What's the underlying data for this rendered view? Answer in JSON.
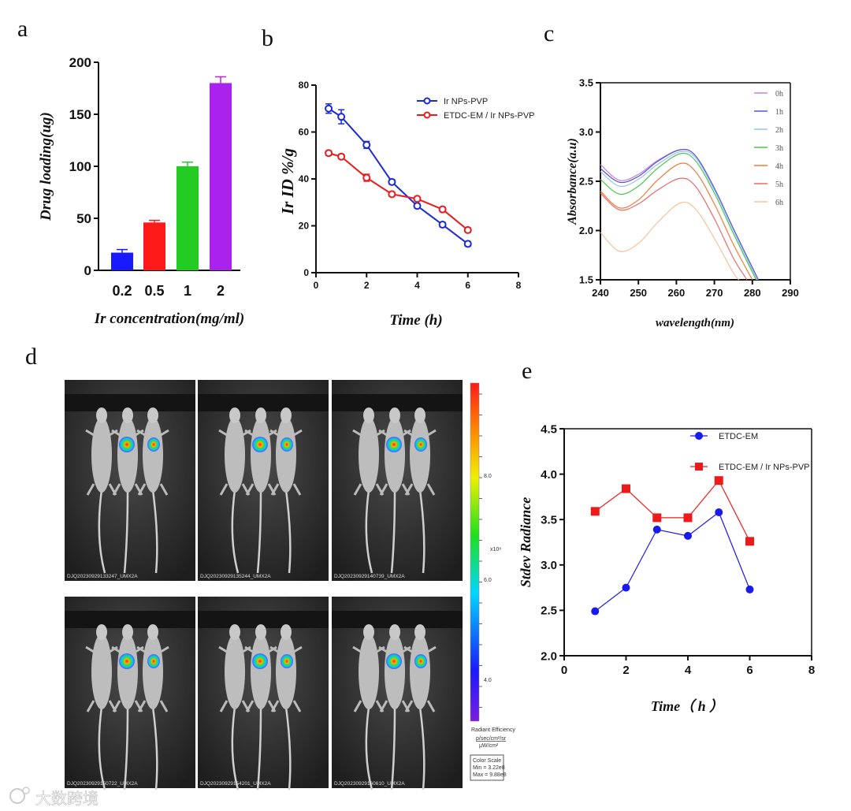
{
  "panel_labels": {
    "a": "a",
    "b": "b",
    "c": "c",
    "d": "d",
    "e": "e"
  },
  "chart_data": [
    {
      "id": "a",
      "type": "bar",
      "categories": [
        "0.2",
        "0.5",
        "1",
        "2"
      ],
      "values": [
        17,
        46,
        100,
        180
      ],
      "errors": [
        3,
        2,
        4,
        6
      ],
      "colors": [
        "#1a1aff",
        "#ff1a1a",
        "#22cc22",
        "#aa22ee"
      ],
      "xlabel": "Ir concentration(mg/ml)",
      "ylabel": "Drug loading(ug)",
      "ylim": [
        0,
        200
      ],
      "yticks": [
        "0",
        "50",
        "100",
        "150",
        "200"
      ]
    },
    {
      "id": "b",
      "type": "line",
      "x": [
        0.5,
        1,
        2,
        3,
        4,
        5,
        6
      ],
      "series": [
        {
          "name": "Ir NPs-PVP",
          "color": "#1a2bd6",
          "values": [
            70,
            66.5,
            54.5,
            38.7,
            28.5,
            20.5,
            12.3
          ],
          "errors": [
            2,
            3,
            1.5,
            1,
            1,
            1,
            1
          ]
        },
        {
          "name": "ETDC-EM / Ir NPs-PVP",
          "color": "#e81c1c",
          "values": [
            51,
            49.5,
            40.5,
            33.5,
            31.5,
            27,
            18.2
          ],
          "errors": [
            1,
            1,
            1.5,
            1,
            1,
            1,
            1
          ]
        }
      ],
      "xlabel": "Time (h)",
      "ylabel": "Ir ID %/g",
      "xlim": [
        0,
        8
      ],
      "ylim": [
        0,
        80
      ],
      "xticks": [
        "0",
        "2",
        "4",
        "6",
        "8"
      ],
      "yticks": [
        "0",
        "20",
        "40",
        "60",
        "80"
      ],
      "legend": "top-right"
    },
    {
      "id": "c",
      "type": "line",
      "x": [
        240,
        245,
        250,
        255,
        261,
        265,
        270,
        275
      ],
      "series": [
        {
          "name": "0h",
          "color": "#c77ee8",
          "values": [
            2.67,
            2.51,
            2.57,
            2.71,
            2.82,
            2.76,
            2.43,
            2.02
          ],
          "end": 281.5
        },
        {
          "name": "1h",
          "color": "#5656d8",
          "values": [
            2.63,
            2.49,
            2.55,
            2.7,
            2.82,
            2.76,
            2.43,
            2.02
          ],
          "end": 281.6
        },
        {
          "name": "2h",
          "color": "#9cc3f0",
          "values": [
            2.6,
            2.45,
            2.52,
            2.67,
            2.8,
            2.74,
            2.41,
            2.0
          ],
          "end": 281.3
        },
        {
          "name": "3h",
          "color": "#4cc84c",
          "values": [
            2.52,
            2.37,
            2.45,
            2.63,
            2.78,
            2.71,
            2.38,
            1.97
          ],
          "end": 281.0
        },
        {
          "name": "4h",
          "color": "#f07a3a",
          "values": [
            2.4,
            2.23,
            2.31,
            2.51,
            2.68,
            2.6,
            2.27,
            1.86
          ],
          "end": 280.0
        },
        {
          "name": "5h",
          "color": "#e86a6a",
          "values": [
            2.38,
            2.21,
            2.27,
            2.41,
            2.53,
            2.45,
            2.12,
            1.72
          ],
          "end": 278.6
        },
        {
          "name": "6h",
          "color": "#f5c29a",
          "values": [
            1.98,
            1.79,
            1.87,
            2.08,
            2.28,
            2.22,
            1.92,
            1.57
          ],
          "end": 276.5
        }
      ],
      "xlabel": "wavelength(nm)",
      "ylabel": "Absorbance(a.u)",
      "xlim": [
        240,
        290
      ],
      "ylim": [
        1.5,
        3.5
      ],
      "xticks": [
        "240",
        "250",
        "260",
        "270",
        "280",
        "290"
      ],
      "yticks": [
        "1.5",
        "2.0",
        "2.5",
        "3.0",
        "3.5"
      ],
      "legend": "top-right"
    },
    {
      "id": "e",
      "type": "line",
      "x": [
        1,
        2,
        3,
        4,
        5,
        6
      ],
      "series": [
        {
          "name": "ETDC-EM",
          "color": "#1a1aee",
          "marker": "circle",
          "values": [
            2.49,
            2.75,
            3.39,
            3.32,
            3.58,
            2.73
          ]
        },
        {
          "name": "ETDC-EM / Ir NPs-PVP",
          "color": "#ee1a1a",
          "marker": "square",
          "values": [
            3.59,
            3.84,
            3.52,
            3.52,
            3.93,
            3.26
          ]
        }
      ],
      "xlabel": "Time（ h ）",
      "ylabel": "Stdev Radiance",
      "xlim": [
        0,
        8
      ],
      "ylim": [
        2.0,
        4.5
      ],
      "xticks": [
        "0",
        "2",
        "4",
        "6",
        "8"
      ],
      "yticks": [
        "2.0",
        "2.5",
        "3.0",
        "3.5",
        "4.0",
        "4.5"
      ],
      "legend": "top-right"
    }
  ],
  "imaging": {
    "captions": [
      "DJQ20230929133247_UMX2A",
      "DJQ20230929135244_UMX2A",
      "DJQ20230929140739_UMX2A",
      "DJQ20230929150722_UMX2A",
      "DJQ20230929154201_UMX2A",
      "DJQ20230929160610_UMX2A"
    ],
    "colorbar_ticks": [
      "8.0",
      "6.0",
      "4.0"
    ],
    "colorbar_exponent": "x10⁸",
    "colorbar_title": "Radiant Efficiency",
    "colorbar_units_num": "p/sec/cm²/sr",
    "colorbar_units_den": "μW/cm²",
    "color_scale_title": "Color Scale",
    "color_scale_min": "Min = 3.22e8",
    "color_scale_max": "Max = 9.88e8"
  },
  "watermark": "大数跨境"
}
